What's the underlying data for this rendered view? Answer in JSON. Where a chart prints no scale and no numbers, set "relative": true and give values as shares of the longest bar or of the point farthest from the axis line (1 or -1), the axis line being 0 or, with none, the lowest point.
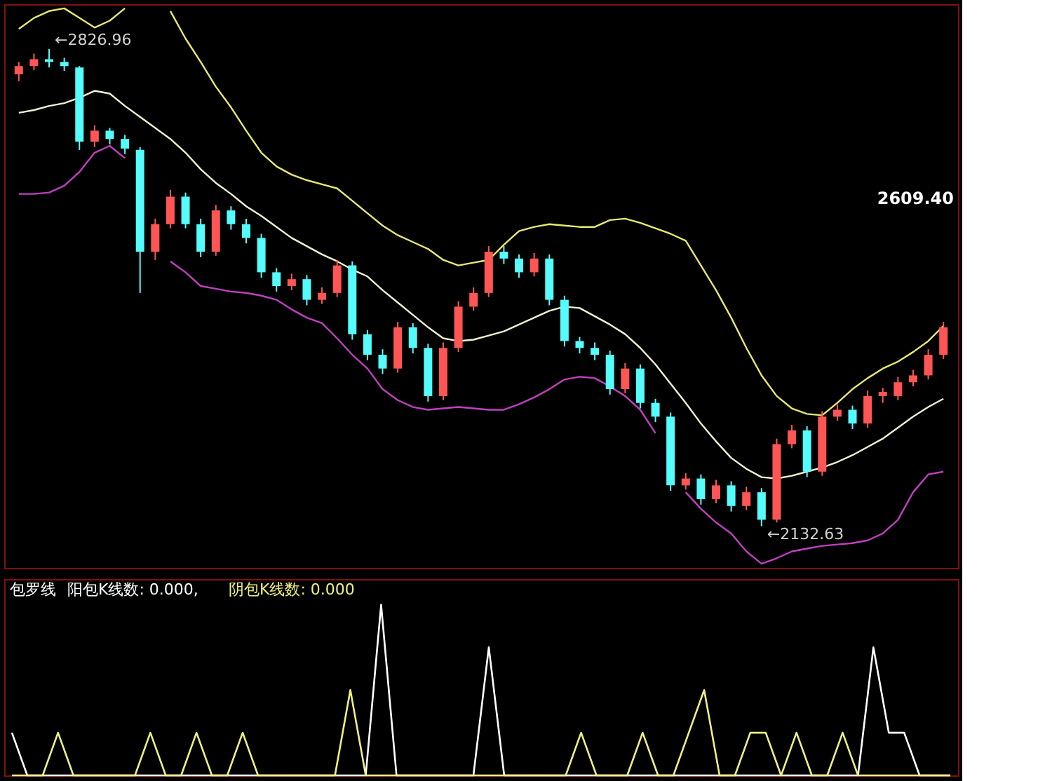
{
  "chart_data": [
    {
      "type": "candlestick",
      "categories": [
        null,
        null,
        null,
        null,
        null,
        null,
        null,
        null,
        null,
        null,
        null,
        null,
        null,
        null,
        null,
        null,
        null,
        null,
        null,
        null,
        null,
        null,
        null,
        null,
        null,
        null,
        null,
        null,
        null,
        null,
        null,
        null,
        null,
        null,
        null,
        null,
        null,
        null,
        null,
        null,
        null,
        null,
        null,
        null,
        null,
        null,
        null,
        null,
        null,
        null,
        null,
        null,
        null,
        null,
        null,
        null,
        null,
        null,
        null,
        null,
        null,
        null
      ],
      "ohlc": [
        [
          2790,
          2808,
          2780,
          2802
        ],
        [
          2802,
          2820,
          2796,
          2812
        ],
        [
          2812,
          2826.96,
          2800,
          2808
        ],
        [
          2808,
          2814,
          2795,
          2802
        ],
        [
          2800,
          2802,
          2680,
          2692
        ],
        [
          2692,
          2716,
          2684,
          2708
        ],
        [
          2708,
          2712,
          2688,
          2696
        ],
        [
          2696,
          2702,
          2674,
          2682
        ],
        [
          2680,
          2684,
          2472,
          2532
        ],
        [
          2532,
          2580,
          2520,
          2572
        ],
        [
          2572,
          2622,
          2566,
          2612
        ],
        [
          2612,
          2618,
          2566,
          2572
        ],
        [
          2572,
          2580,
          2524,
          2532
        ],
        [
          2532,
          2600,
          2526,
          2592
        ],
        [
          2592,
          2598,
          2564,
          2572
        ],
        [
          2572,
          2580,
          2544,
          2552
        ],
        [
          2552,
          2558,
          2494,
          2502
        ],
        [
          2502,
          2508,
          2474,
          2482
        ],
        [
          2482,
          2500,
          2476,
          2492
        ],
        [
          2492,
          2498,
          2454,
          2462
        ],
        [
          2462,
          2480,
          2456,
          2472
        ],
        [
          2472,
          2520,
          2466,
          2512
        ],
        [
          2512,
          2518,
          2404,
          2412
        ],
        [
          2412,
          2418,
          2374,
          2382
        ],
        [
          2382,
          2390,
          2354,
          2362
        ],
        [
          2362,
          2430,
          2356,
          2422
        ],
        [
          2422,
          2428,
          2384,
          2392
        ],
        [
          2392,
          2398,
          2314,
          2322
        ],
        [
          2322,
          2400,
          2316,
          2392
        ],
        [
          2392,
          2460,
          2386,
          2452
        ],
        [
          2452,
          2480,
          2446,
          2472
        ],
        [
          2472,
          2540,
          2466,
          2532
        ],
        [
          2532,
          2540,
          2514,
          2522
        ],
        [
          2522,
          2528,
          2494,
          2502
        ],
        [
          2502,
          2530,
          2496,
          2522
        ],
        [
          2522,
          2528,
          2454,
          2462
        ],
        [
          2462,
          2468,
          2394,
          2402
        ],
        [
          2402,
          2408,
          2384,
          2392
        ],
        [
          2392,
          2400,
          2374,
          2382
        ],
        [
          2382,
          2388,
          2324,
          2332
        ],
        [
          2332,
          2370,
          2326,
          2362
        ],
        [
          2362,
          2368,
          2304,
          2312
        ],
        [
          2312,
          2318,
          2284,
          2292
        ],
        [
          2292,
          2298,
          2184,
          2192
        ],
        [
          2192,
          2210,
          2186,
          2202
        ],
        [
          2202,
          2208,
          2164,
          2172
        ],
        [
          2172,
          2200,
          2166,
          2192
        ],
        [
          2192,
          2198,
          2154,
          2162
        ],
        [
          2162,
          2190,
          2156,
          2182
        ],
        [
          2182,
          2188,
          2132.63,
          2142
        ],
        [
          2142,
          2260,
          2138,
          2252
        ],
        [
          2252,
          2280,
          2246,
          2272
        ],
        [
          2272,
          2278,
          2204,
          2212
        ],
        [
          2212,
          2300,
          2206,
          2292
        ],
        [
          2292,
          2310,
          2286,
          2302
        ],
        [
          2302,
          2308,
          2274,
          2282
        ],
        [
          2282,
          2330,
          2276,
          2322
        ],
        [
          2322,
          2334,
          2312,
          2328
        ],
        [
          2322,
          2350,
          2316,
          2342
        ],
        [
          2342,
          2360,
          2336,
          2352
        ],
        [
          2352,
          2390,
          2346,
          2382
        ],
        [
          2382,
          2430,
          2376,
          2422
        ]
      ],
      "series": [
        {
          "type": "line",
          "color": "#e8e870",
          "values": [
            2856,
            2872,
            2882,
            2886,
            2872,
            2858,
            2868,
            2886,
            null,
            null,
            2882,
            2842,
            2808,
            2772,
            2742,
            2708,
            2676,
            2656,
            2644,
            2636,
            2630,
            2624,
            2606,
            2588,
            2570,
            2556,
            2546,
            2536,
            2520,
            2512,
            2516,
            2520,
            2542,
            2562,
            2568,
            2572,
            2570,
            2568,
            2568,
            2578,
            2580,
            2574,
            2566,
            2558,
            2548,
            2512,
            2476,
            2436,
            2392,
            2352,
            2322,
            2304,
            2296,
            2294,
            2312,
            2332,
            2348,
            2362,
            2372,
            2386,
            2402,
            2424
          ]
        },
        {
          "type": "line",
          "color": "#f0f0d0",
          "values": [
            2734,
            2738,
            2744,
            2748,
            2756,
            2766,
            2762,
            2744,
            2728,
            2712,
            2696,
            2676,
            2652,
            2632,
            2616,
            2598,
            2584,
            2568,
            2552,
            2540,
            2528,
            2518,
            2506,
            2496,
            2476,
            2458,
            2440,
            2422,
            2406,
            2402,
            2404,
            2410,
            2416,
            2426,
            2436,
            2446,
            2452,
            2450,
            2438,
            2426,
            2412,
            2392,
            2368,
            2340,
            2312,
            2282,
            2256,
            2232,
            2216,
            2204,
            2202,
            2206,
            2212,
            2218,
            2226,
            2236,
            2248,
            2260,
            2276,
            2292,
            2306,
            2318
          ]
        },
        {
          "type": "line",
          "color": "#c040c0",
          "values": [
            2616,
            2616,
            2618,
            2628,
            2648,
            2676,
            2686,
            2668,
            null,
            null,
            2518,
            2502,
            2482,
            2478,
            2474,
            2472,
            2468,
            2462,
            2448,
            2436,
            2428,
            2406,
            2382,
            2362,
            2332,
            2316,
            2306,
            2302,
            2304,
            2306,
            2304,
            2302,
            2302,
            2310,
            2320,
            2332,
            2346,
            2350,
            2348,
            2336,
            2322,
            2302,
            2268,
            null,
            2182,
            2158,
            2138,
            2122,
            2096,
            2078,
            2086,
            2096,
            2100,
            2104,
            2106,
            2108,
            2112,
            2122,
            2142,
            2182,
            2208,
            2212
          ]
        }
      ],
      "annotations": [
        "←2826.96",
        "←2132.63",
        "2609.40"
      ],
      "ylim": [
        2072,
        2892
      ]
    },
    {
      "type": "line",
      "categories": [
        null,
        null,
        null,
        null,
        null,
        null,
        null,
        null,
        null,
        null,
        null,
        null,
        null,
        null,
        null,
        null,
        null,
        null,
        null,
        null,
        null,
        null,
        null,
        null,
        null,
        null,
        null,
        null,
        null,
        null,
        null,
        null,
        null,
        null,
        null,
        null,
        null,
        null,
        null,
        null,
        null,
        null,
        null,
        null,
        null,
        null,
        null,
        null,
        null,
        null,
        null,
        null,
        null,
        null,
        null,
        null,
        null,
        null,
        null,
        null,
        null,
        null
      ],
      "relative": true,
      "legend_title": "包罗线",
      "legend": "top left",
      "series": [
        {
          "name": "阳包K线数: 0.000,",
          "color": "#ffffff",
          "values": [
            0.25,
            0,
            0,
            0,
            0,
            0,
            0,
            0,
            0,
            0,
            0,
            0,
            0,
            0,
            0,
            0,
            0,
            0,
            0,
            0,
            0,
            0,
            0,
            0,
            1,
            0,
            0,
            0,
            0,
            0,
            0,
            0.75,
            0,
            0,
            0,
            0,
            0,
            0,
            0,
            0,
            0,
            0,
            0,
            0,
            0,
            0,
            0,
            0,
            0,
            0,
            0,
            0,
            0,
            0,
            0,
            0,
            0.75,
            0.25,
            0.25,
            0,
            0,
            0
          ]
        },
        {
          "name": "阴包K线数: 0.000",
          "color": "#f0f080",
          "values": [
            0,
            0,
            0,
            0.25,
            0,
            0,
            0,
            0,
            0,
            0.25,
            0,
            0,
            0.25,
            0,
            0,
            0.25,
            0,
            0,
            0,
            0,
            0,
            0,
            0.5,
            0,
            0,
            0,
            0,
            0,
            0,
            0,
            0,
            0,
            0,
            0,
            0,
            0,
            0,
            0.25,
            0,
            0,
            0,
            0.25,
            0,
            0,
            0.25,
            0.5,
            0,
            0,
            0.25,
            0.25,
            0,
            0.25,
            0,
            0,
            0.25,
            0,
            0,
            0,
            0,
            0,
            0,
            0
          ]
        }
      ]
    }
  ]
}
